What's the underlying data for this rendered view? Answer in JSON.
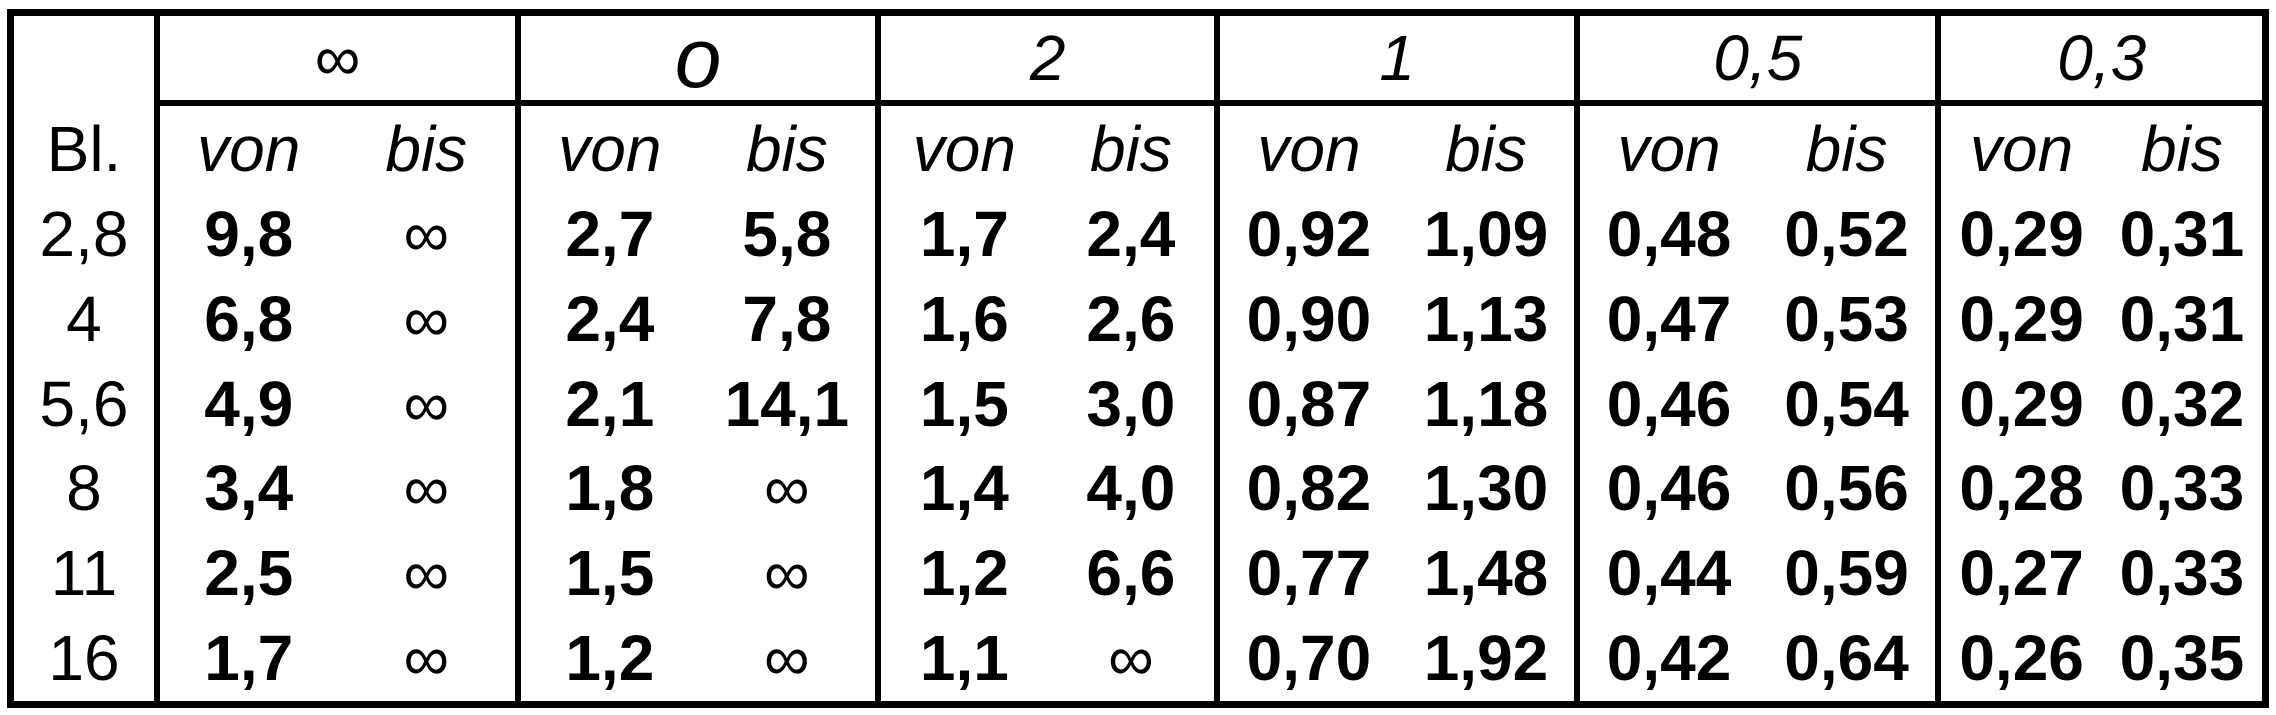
{
  "table": {
    "corner_label": "Bl.",
    "groups": [
      {
        "label": "∞",
        "von": "von",
        "bis": "bis"
      },
      {
        "label": "o",
        "von": "von",
        "bis": "bis"
      },
      {
        "label": "2",
        "von": "von",
        "bis": "bis"
      },
      {
        "label": "1",
        "von": "von",
        "bis": "bis"
      },
      {
        "label": "0,5",
        "von": "von",
        "bis": "bis"
      },
      {
        "label": "0,3",
        "von": "von",
        "bis": "bis"
      }
    ],
    "rows": [
      {
        "label": "2,8",
        "values": [
          "9,8",
          "∞",
          "2,7",
          "5,8",
          "1,7",
          "2,4",
          "0,92",
          "1,09",
          "0,48",
          "0,52",
          "0,29",
          "0,31"
        ]
      },
      {
        "label": "4",
        "values": [
          "6,8",
          "∞",
          "2,4",
          "7,8",
          "1,6",
          "2,6",
          "0,90",
          "1,13",
          "0,47",
          "0,53",
          "0,29",
          "0,31"
        ]
      },
      {
        "label": "5,6",
        "values": [
          "4,9",
          "∞",
          "2,1",
          "14,1",
          "1,5",
          "3,0",
          "0,87",
          "1,18",
          "0,46",
          "0,54",
          "0,29",
          "0,32"
        ]
      },
      {
        "label": "8",
        "values": [
          "3,4",
          "∞",
          "1,8",
          "∞",
          "1,4",
          "4,0",
          "0,82",
          "1,30",
          "0,46",
          "0,56",
          "0,28",
          "0,33"
        ]
      },
      {
        "label": "11",
        "values": [
          "2,5",
          "∞",
          "1,5",
          "∞",
          "1,2",
          "6,6",
          "0,77",
          "1,48",
          "0,44",
          "0,59",
          "0,27",
          "0,33"
        ]
      },
      {
        "label": "16",
        "values": [
          "1,7",
          "∞",
          "1,2",
          "∞",
          "1,1",
          "∞",
          "0,70",
          "1,92",
          "0,42",
          "0,64",
          "0,26",
          "0,35"
        ]
      }
    ]
  },
  "chart_data": {
    "type": "table",
    "title": "",
    "column_groups": [
      "∞",
      "o",
      "2",
      "1",
      "0,5",
      "0,3"
    ],
    "sub_columns": [
      "von",
      "bis"
    ],
    "row_header": "Bl.",
    "row_labels": [
      "2,8",
      "4",
      "5,6",
      "8",
      "11",
      "16"
    ],
    "cells": [
      [
        "9,8",
        "∞",
        "2,7",
        "5,8",
        "1,7",
        "2,4",
        "0,92",
        "1,09",
        "0,48",
        "0,52",
        "0,29",
        "0,31"
      ],
      [
        "6,8",
        "∞",
        "2,4",
        "7,8",
        "1,6",
        "2,6",
        "0,90",
        "1,13",
        "0,47",
        "0,53",
        "0,29",
        "0,31"
      ],
      [
        "4,9",
        "∞",
        "2,1",
        "14,1",
        "1,5",
        "3,0",
        "0,87",
        "1,18",
        "0,46",
        "0,54",
        "0,29",
        "0,32"
      ],
      [
        "3,4",
        "∞",
        "1,8",
        "∞",
        "1,4",
        "4,0",
        "0,82",
        "1,30",
        "0,46",
        "0,56",
        "0,28",
        "0,33"
      ],
      [
        "2,5",
        "∞",
        "1,5",
        "∞",
        "1,2",
        "6,6",
        "0,77",
        "1,48",
        "0,44",
        "0,59",
        "0,27",
        "0,33"
      ],
      [
        "1,7",
        "∞",
        "1,2",
        "∞",
        "1,1",
        "∞",
        "0,70",
        "1,92",
        "0,42",
        "0,64",
        "0,26",
        "0,35"
      ]
    ],
    "legend_position": "none",
    "grid": "partial: outer frame, vertical group separators, underline below group-header row"
  },
  "colors": {
    "text": "#000000",
    "border": "#000000",
    "background": "#ffffff"
  }
}
